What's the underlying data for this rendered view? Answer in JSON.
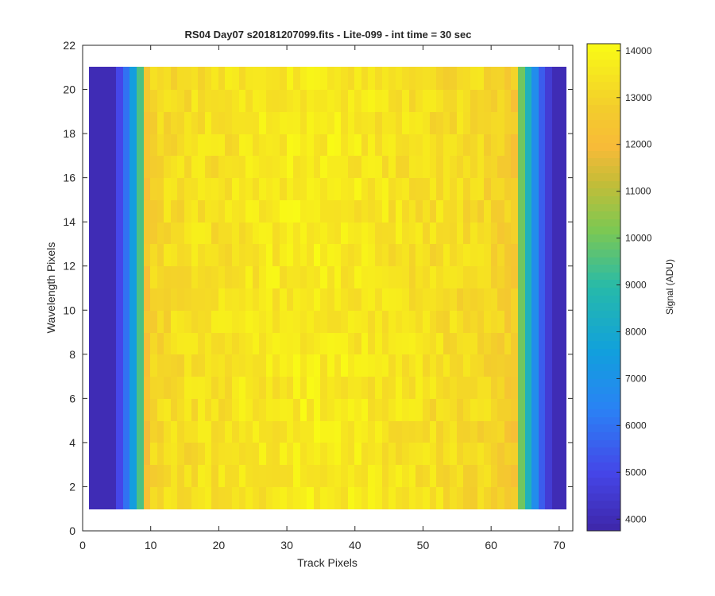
{
  "chart_data": {
    "type": "heatmap",
    "title": "RS04 Day07  s20181207099.fits - Lite-099 - int time = 30 sec",
    "xlabel": "Track Pixels",
    "ylabel": "Wavelength Pixels",
    "colorbar_label": "Signal (ADU)",
    "colormap": "parula",
    "xlim": [
      0,
      72
    ],
    "ylim": [
      0,
      22
    ],
    "x_ticks": [
      0,
      10,
      20,
      30,
      40,
      50,
      60,
      70
    ],
    "y_ticks": [
      0,
      2,
      4,
      6,
      8,
      10,
      12,
      14,
      16,
      18,
      20,
      22
    ],
    "clim": [
      3750,
      14150
    ],
    "colorbar_ticks": [
      4000,
      5000,
      6000,
      7000,
      8000,
      9000,
      10000,
      11000,
      12000,
      13000,
      14000
    ],
    "grid": false,
    "x_range": [
      1,
      71
    ],
    "y_range": [
      1,
      21
    ],
    "column_mean_signal": [
      4000,
      4000,
      4000,
      4000,
      5000,
      6000,
      7500,
      9500,
      12300,
      13000,
      13100,
      13200,
      13250,
      13300,
      13300,
      13350,
      13350,
      13400,
      13400,
      13450,
      13450,
      13500,
      13500,
      13500,
      13550,
      13550,
      13600,
      13600,
      13650,
      13650,
      13700,
      13700,
      13750,
      13750,
      13700,
      13700,
      13650,
      13650,
      13600,
      13600,
      13550,
      13550,
      13500,
      13500,
      13450,
      13450,
      13400,
      13400,
      13350,
      13350,
      13300,
      13300,
      13250,
      13250,
      13200,
      13200,
      13150,
      13150,
      13100,
      13000,
      12900,
      12800,
      12600,
      10000,
      8500,
      6800,
      5500,
      4600,
      4000,
      4000
    ],
    "row_count": 20,
    "noise_amplitude_adu": 450
  }
}
